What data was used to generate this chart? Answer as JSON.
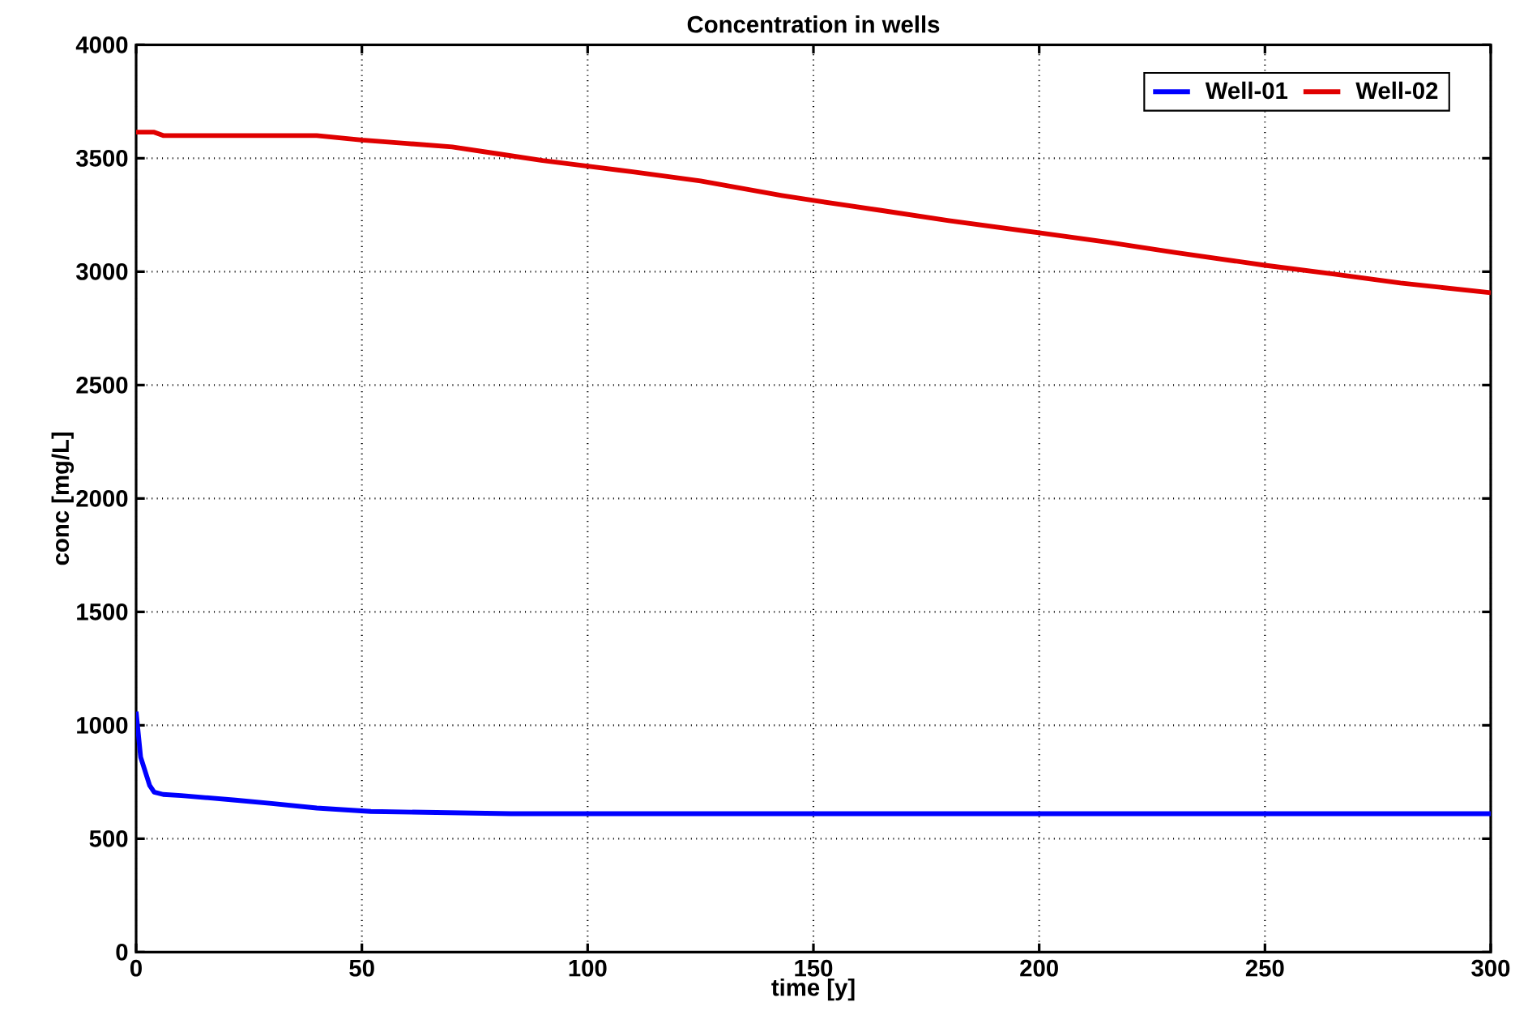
{
  "chart_data": {
    "type": "line",
    "title": "Concentration in wells",
    "xlabel": "time [y]",
    "ylabel": "conc [mg/L]",
    "xlim": [
      0,
      300
    ],
    "ylim": [
      0,
      4000
    ],
    "xticks": [
      0,
      50,
      100,
      150,
      200,
      250,
      300
    ],
    "yticks": [
      0,
      500,
      1000,
      1500,
      2000,
      2500,
      3000,
      3500,
      4000
    ],
    "grid": true,
    "legend": "top right",
    "marker": "none",
    "line_style": "solid",
    "series": [
      {
        "name": "Well-01",
        "color": "#0000ff",
        "x": [
          0,
          1,
          3,
          4,
          6,
          10,
          16,
          22,
          30,
          40,
          52,
          83,
          300
        ],
        "values": [
          1060,
          860,
          735,
          705,
          695,
          690,
          680,
          670,
          655,
          635,
          620,
          610,
          610
        ]
      },
      {
        "name": "Well-02",
        "color": "#e00000",
        "x": [
          0,
          4,
          6,
          40,
          50,
          60,
          70,
          80,
          90,
          100,
          110,
          125,
          143,
          150,
          165,
          180,
          200,
          215,
          230,
          250,
          265,
          280,
          300
        ],
        "values": [
          3615,
          3615,
          3600,
          3600,
          3580,
          3565,
          3550,
          3520,
          3490,
          3465,
          3440,
          3400,
          3336,
          3314,
          3270,
          3225,
          3171,
          3130,
          3085,
          3028,
          2990,
          2950,
          2907
        ]
      }
    ]
  }
}
